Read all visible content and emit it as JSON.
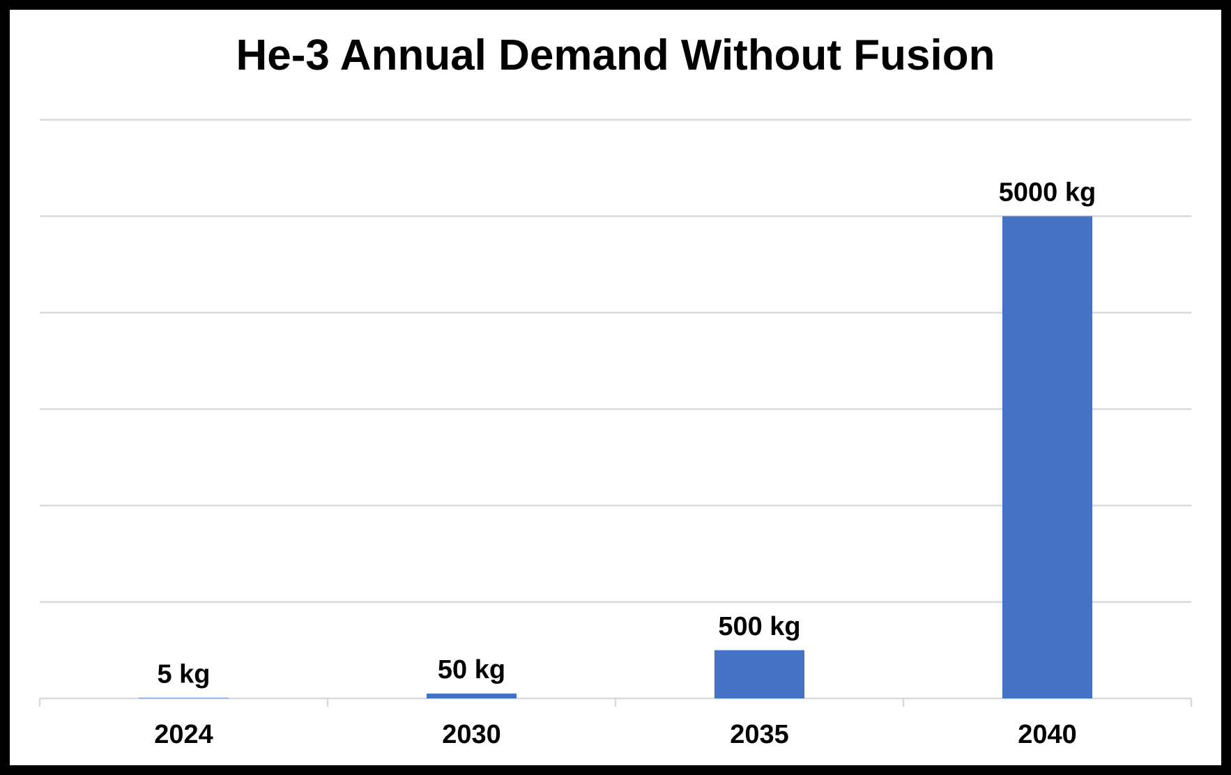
{
  "chart_data": {
    "type": "bar",
    "title": "He-3 Annual Demand Without Fusion",
    "xlabel": "",
    "ylabel": "",
    "categories": [
      "2024",
      "2030",
      "2035",
      "2040"
    ],
    "values": [
      5,
      50,
      500,
      5000
    ],
    "data_labels": [
      "5 kg",
      "50 kg",
      "500 kg",
      "5000 kg"
    ],
    "ylim": [
      0,
      6000
    ],
    "gridline_step": 1000,
    "grid": true,
    "y_tick_labels_shown": false,
    "legend": "none",
    "bar_color": "#4472C4",
    "grid_color": "#D9D9D9",
    "axis_color": "#D9D9D9",
    "frame_color": "#000000"
  }
}
